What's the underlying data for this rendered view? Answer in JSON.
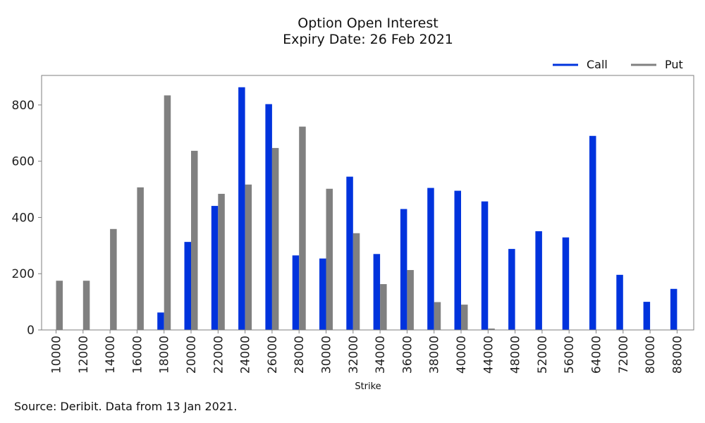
{
  "chart_data": {
    "type": "bar",
    "title": "Option Open Interest",
    "subtitle": "Expiry Date: 26 Feb 2021",
    "xlabel": "Strike",
    "ylabel": "",
    "ylim": [
      0,
      905
    ],
    "yticks": [
      0,
      200,
      400,
      600,
      800
    ],
    "grid": false,
    "legend_position": "top-right",
    "categories": [
      "10000",
      "12000",
      "14000",
      "16000",
      "18000",
      "20000",
      "22000",
      "24000",
      "26000",
      "28000",
      "30000",
      "32000",
      "34000",
      "36000",
      "38000",
      "40000",
      "44000",
      "48000",
      "52000",
      "56000",
      "64000",
      "72000",
      "80000",
      "88000"
    ],
    "series": [
      {
        "name": "Call",
        "color": "#0033dd",
        "values": [
          0,
          0,
          0,
          0,
          62,
          313,
          441,
          863,
          803,
          265,
          254,
          545,
          270,
          430,
          505,
          495,
          457,
          288,
          351,
          329,
          690,
          196,
          100,
          146
        ]
      },
      {
        "name": "Put",
        "color": "#808080",
        "values": [
          175,
          175,
          359,
          507,
          834,
          637,
          484,
          517,
          647,
          723,
          502,
          344,
          163,
          213,
          99,
          90,
          5,
          0,
          0,
          0,
          0,
          0,
          0,
          0
        ]
      }
    ],
    "source_note": "Source: Deribit. Data from 13 Jan 2021."
  }
}
